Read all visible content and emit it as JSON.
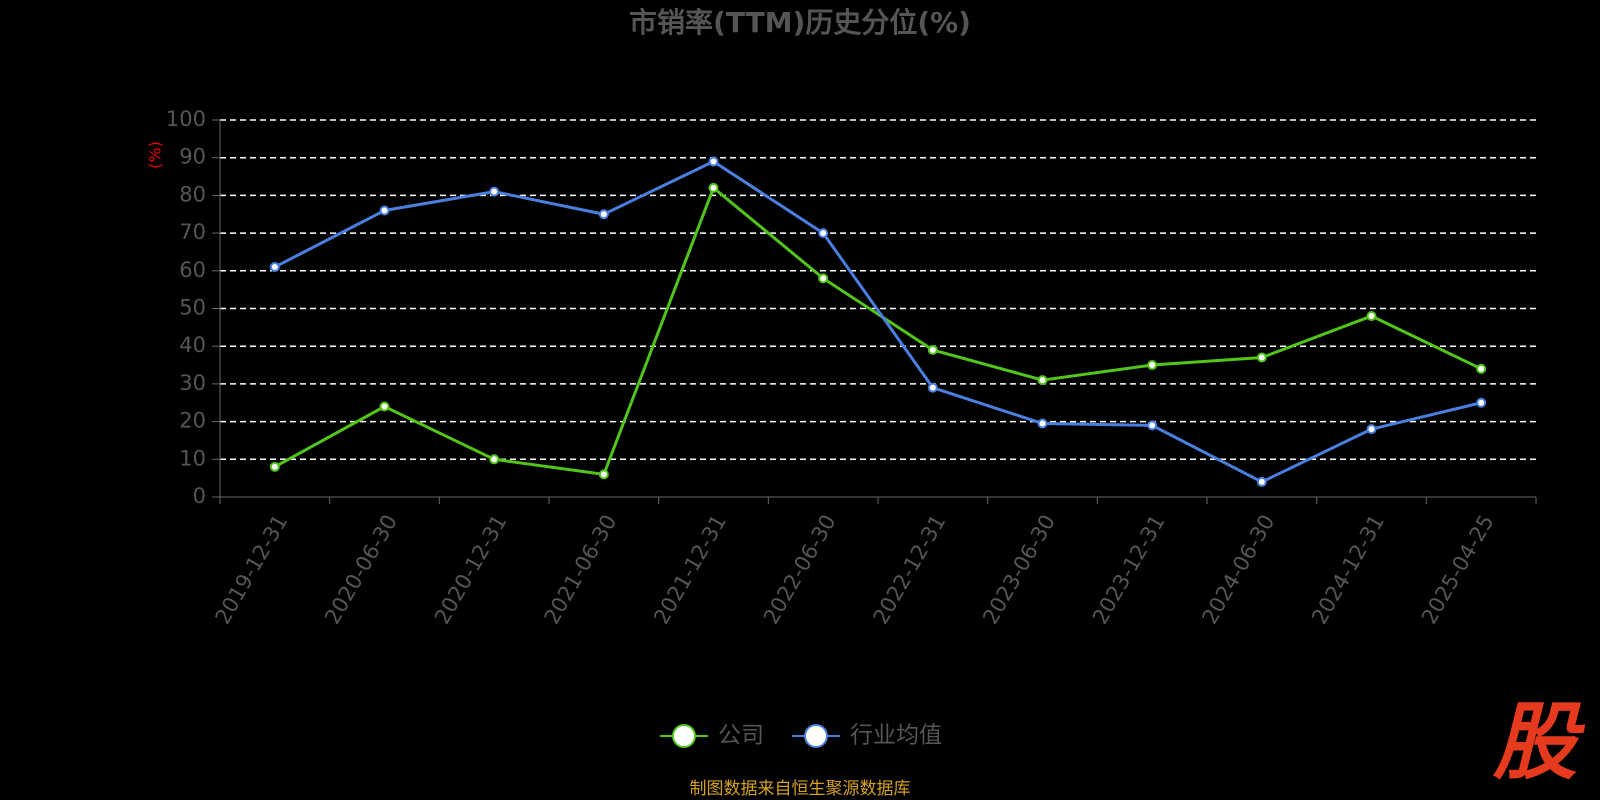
{
  "chart_data": {
    "type": "line",
    "title": "市销率(TTM)历史分位(%)",
    "y_label": "(%)",
    "categories": [
      "2019-12-31",
      "2020-06-30",
      "2020-12-31",
      "2021-06-30",
      "2021-12-31",
      "2022-06-30",
      "2022-12-31",
      "2023-06-30",
      "2023-12-31",
      "2024-06-30",
      "2024-12-31",
      "2025-04-25"
    ],
    "series": [
      {
        "name": "公司",
        "color": "#52c41a",
        "values": [
          8,
          24,
          10,
          6,
          82,
          58,
          39,
          31,
          35,
          37,
          48,
          34
        ]
      },
      {
        "name": "行业均值",
        "color": "#4a7fe0",
        "values": [
          61,
          76,
          81,
          75,
          89,
          70,
          29,
          19.5,
          19,
          4,
          18,
          25
        ]
      }
    ],
    "ylim": [
      0,
      100
    ],
    "yticks": [
      0,
      10,
      20,
      30,
      40,
      50,
      60,
      70,
      80,
      90,
      100
    ],
    "grid": true,
    "legend": "bottom"
  },
  "footer": "制图数据来自恒生聚源数据库",
  "watermark": "股"
}
